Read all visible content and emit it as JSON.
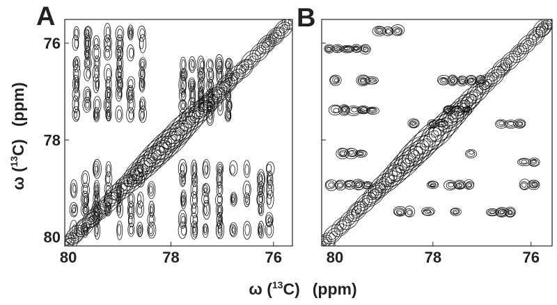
{
  "chart_data": [
    {
      "type": "contour",
      "panel_label": "A",
      "xlim": [
        80.07,
        75.63
      ],
      "ylim": [
        80.19,
        75.51
      ],
      "xticks": [
        80,
        78,
        76
      ],
      "yticks": [
        76,
        78,
        80
      ],
      "ytick_labels": true,
      "color": "#111111"
    },
    {
      "type": "contour",
      "panel_label": "B",
      "xlim": [
        80.27,
        75.57
      ],
      "ylim": [
        80.19,
        75.51
      ],
      "xticks": [
        80,
        78,
        76
      ],
      "yticks": [
        76,
        78,
        80
      ],
      "ytick_labels": false,
      "color": "#111111"
    }
  ],
  "x_axis_label": {
    "prefix": "ω (",
    "sup": "13",
    "suffix": "C)",
    "unit": "(ppm)"
  },
  "y_axis_label": {
    "prefix": "ω (",
    "sup": "13",
    "suffix": "C)",
    "unit": "(ppm)"
  }
}
